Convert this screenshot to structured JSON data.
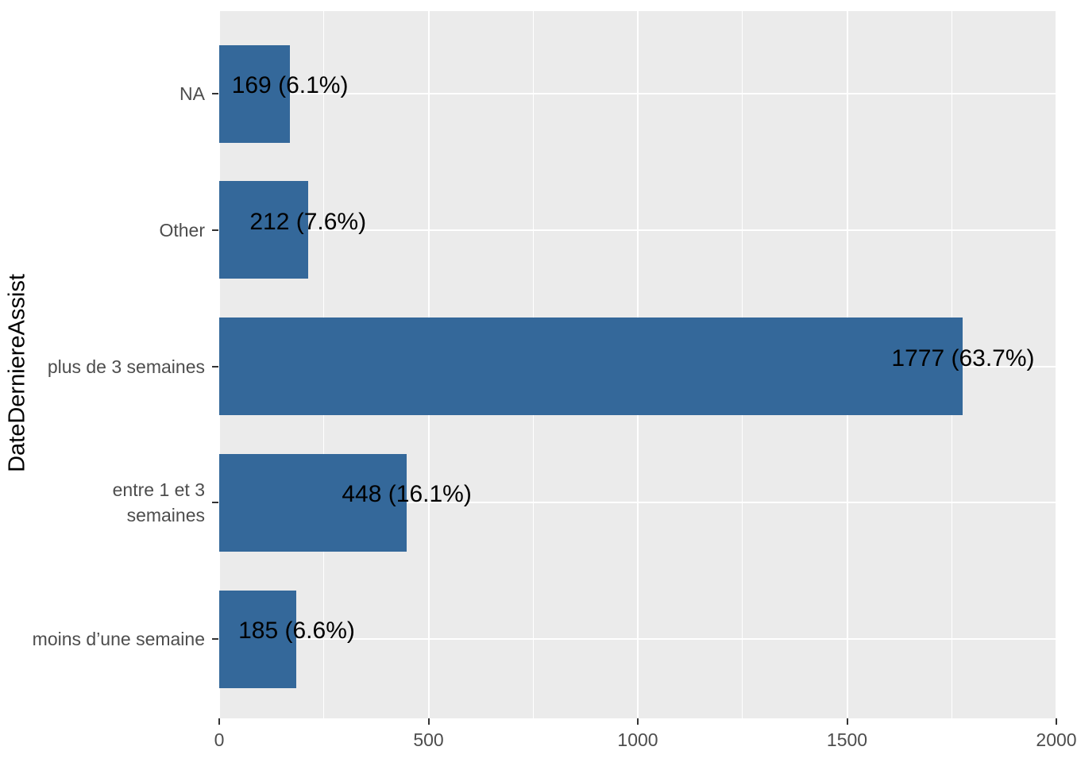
{
  "chart_data": {
    "type": "bar",
    "orientation": "horizontal",
    "title": "",
    "xlabel": "",
    "ylabel": "DateDerniereAssist",
    "xlim": [
      0,
      2000
    ],
    "x_major_ticks": [
      0,
      500,
      1000,
      1500,
      2000
    ],
    "x_major_tick_labels": [
      "0",
      "500",
      "1000",
      "1500",
      "2000"
    ],
    "x_minor_ticks": [
      250,
      750,
      1250,
      1750
    ],
    "grid": "on",
    "legend_position": "none",
    "categories": [
      "NA",
      "Other",
      "plus de 3 semaines",
      "entre 1 et 3\nsemaines",
      "moins d’une semaine"
    ],
    "values": [
      169,
      212,
      1777,
      448,
      185
    ],
    "bar_labels": [
      "169 (6.1%)",
      "212 (7.6%)",
      "1777 (63.7%)",
      "448 (16.1%)",
      "185 (6.6%)"
    ],
    "colors": {
      "bar": "#34689A",
      "panel_background": "#EBEBEB",
      "grid": "#FFFFFF",
      "axis_text": "#4D4D4D",
      "tick_mark": "#333333",
      "bar_label_text": "#000000",
      "axis_title": "#000000",
      "page_background": "#FFFFFF"
    }
  }
}
